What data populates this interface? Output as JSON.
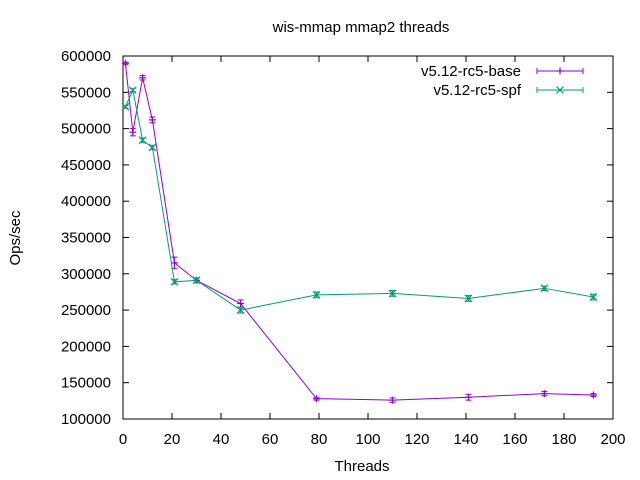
{
  "chart_data": {
    "type": "line",
    "title": "wis-mmap mmap2 threads",
    "xlabel": "Threads",
    "ylabel": "Ops/sec",
    "xlim": [
      0,
      200
    ],
    "ylim": [
      100000,
      600000
    ],
    "x_ticks": [
      0,
      20,
      40,
      60,
      80,
      100,
      120,
      140,
      160,
      180,
      200
    ],
    "y_ticks": [
      100000,
      150000,
      200000,
      250000,
      300000,
      350000,
      400000,
      450000,
      500000,
      550000,
      600000
    ],
    "grid": false,
    "legend_position": "top-right",
    "error_bars": true,
    "series": [
      {
        "name": "v5.12-rc5-base",
        "color": "#9400d3",
        "marker": "plus",
        "points": [
          {
            "x": 1,
            "y": 590000,
            "err": 1500
          },
          {
            "x": 4,
            "y": 495000,
            "err": 5000
          },
          {
            "x": 8,
            "y": 570000,
            "err": 3000
          },
          {
            "x": 12,
            "y": 512000,
            "err": 4000
          },
          {
            "x": 21,
            "y": 315000,
            "err": 8000
          },
          {
            "x": 30,
            "y": 291000,
            "err": 3000
          },
          {
            "x": 48,
            "y": 259000,
            "err": 5000
          },
          {
            "x": 79,
            "y": 128000,
            "err": 2000
          },
          {
            "x": 110,
            "y": 126000,
            "err": 3000
          },
          {
            "x": 141,
            "y": 130000,
            "err": 4000
          },
          {
            "x": 172,
            "y": 135000,
            "err": 3000
          },
          {
            "x": 192,
            "y": 133000,
            "err": 2000
          }
        ]
      },
      {
        "name": "v5.12-rc5-spf",
        "color": "#009e73",
        "marker": "cross",
        "points": [
          {
            "x": 1,
            "y": 530000,
            "err": 2000
          },
          {
            "x": 4,
            "y": 553000,
            "err": 2000
          },
          {
            "x": 8,
            "y": 484000,
            "err": 3000
          },
          {
            "x": 12,
            "y": 474000,
            "err": 3000
          },
          {
            "x": 21,
            "y": 289000,
            "err": 3000
          },
          {
            "x": 30,
            "y": 291000,
            "err": 3000
          },
          {
            "x": 48,
            "y": 250000,
            "err": 4000
          },
          {
            "x": 79,
            "y": 271000,
            "err": 4000
          },
          {
            "x": 110,
            "y": 273000,
            "err": 4000
          },
          {
            "x": 141,
            "y": 266000,
            "err": 4000
          },
          {
            "x": 172,
            "y": 280000,
            "err": 3000
          },
          {
            "x": 192,
            "y": 268000,
            "err": 4000
          }
        ]
      }
    ]
  }
}
